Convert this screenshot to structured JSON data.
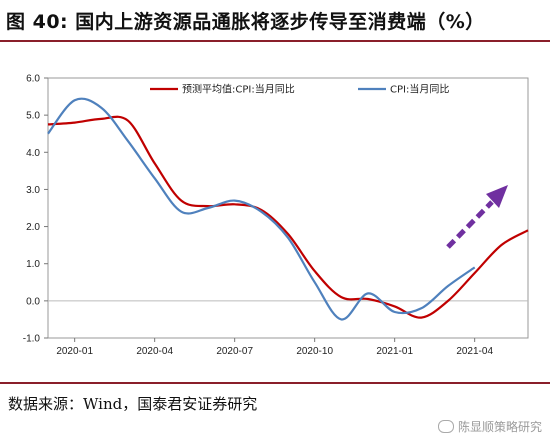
{
  "header": {
    "title": "图 40: 国内上游资源品通胀将逐步传导至消费端（%）"
  },
  "footer": {
    "source": "数据来源：Wind，国泰君安证券研究",
    "watermark": "陈显顺策略研究"
  },
  "chart_data": {
    "type": "line",
    "ylim": [
      -1.0,
      6.0
    ],
    "yticks": [
      "6.0",
      "5.0",
      "4.0",
      "3.0",
      "2.0",
      "1.0",
      "0.0",
      "-1.0"
    ],
    "xticks": [
      "2020-01",
      "2020-04",
      "2020-07",
      "2020-10",
      "2021-01",
      "2021-04"
    ],
    "grid": false,
    "legend_position": "top-center",
    "series": [
      {
        "name": "预测平均值:CPI:当月同比",
        "color": "#c00000",
        "points": [
          [
            "2019-12",
            4.75
          ],
          [
            "2020-01",
            4.8
          ],
          [
            "2020-02",
            4.9
          ],
          [
            "2020-03",
            4.85
          ],
          [
            "2020-04",
            3.7
          ],
          [
            "2020-05",
            2.7
          ],
          [
            "2020-06",
            2.55
          ],
          [
            "2020-07",
            2.6
          ],
          [
            "2020-08",
            2.45
          ],
          [
            "2020-09",
            1.8
          ],
          [
            "2020-10",
            0.8
          ],
          [
            "2020-11",
            0.1
          ],
          [
            "2020-12",
            0.05
          ],
          [
            "2021-01",
            -0.15
          ],
          [
            "2021-02",
            -0.45
          ],
          [
            "2021-03",
            0.0
          ],
          [
            "2021-04",
            0.75
          ],
          [
            "2021-05",
            1.5
          ],
          [
            "2021-06",
            1.9
          ]
        ]
      },
      {
        "name": "CPI:当月同比",
        "color": "#4f81bd",
        "points": [
          [
            "2019-12",
            4.5
          ],
          [
            "2020-01",
            5.4
          ],
          [
            "2020-02",
            5.2
          ],
          [
            "2020-03",
            4.3
          ],
          [
            "2020-04",
            3.3
          ],
          [
            "2020-05",
            2.4
          ],
          [
            "2020-06",
            2.5
          ],
          [
            "2020-07",
            2.7
          ],
          [
            "2020-08",
            2.4
          ],
          [
            "2020-09",
            1.7
          ],
          [
            "2020-10",
            0.5
          ],
          [
            "2020-11",
            -0.5
          ],
          [
            "2020-12",
            0.2
          ],
          [
            "2021-01",
            -0.3
          ],
          [
            "2021-02",
            -0.2
          ],
          [
            "2021-03",
            0.4
          ],
          [
            "2021-04",
            0.9
          ]
        ]
      }
    ]
  },
  "arrow": {
    "color": "#7030a0"
  }
}
